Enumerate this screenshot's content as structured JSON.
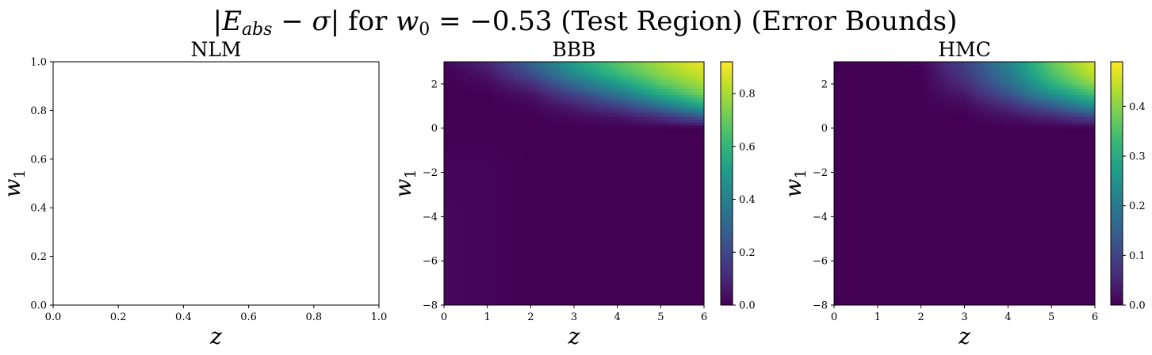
{
  "figure": {
    "suptitle_parts": [
      {
        "text": "|",
        "style": "normal"
      },
      {
        "text": "E",
        "style": "italic"
      },
      {
        "text": "abs",
        "style": "italic-sub"
      },
      {
        "text": " − ",
        "style": "normal"
      },
      {
        "text": "σ",
        "style": "italic"
      },
      {
        "text": "| for ",
        "style": "normal"
      },
      {
        "text": "w",
        "style": "italic"
      },
      {
        "text": "0",
        "style": "sub"
      },
      {
        "text": " = −0.53 (Test Region) (Error Bounds)",
        "style": "normal"
      }
    ]
  },
  "colormap": {
    "name": "viridis",
    "stops": [
      "#440154",
      "#482878",
      "#3e4989",
      "#31688e",
      "#26828e",
      "#1f9e89",
      "#35b779",
      "#6ece58",
      "#b5de2b",
      "#fde725"
    ]
  },
  "chart_data": [
    {
      "type": "heatmap",
      "title": "NLM",
      "xlabel": "z",
      "ylabel_main": "w",
      "ylabel_sub": "1",
      "xlim": [
        0,
        1
      ],
      "ylim": [
        0,
        1
      ],
      "xticks": [
        "0.0",
        "0.2",
        "0.4",
        "0.6",
        "0.8",
        "1.0"
      ],
      "yticks": [
        "0.0",
        "0.2",
        "0.4",
        "0.6",
        "0.8",
        "1.0"
      ],
      "empty": true,
      "colorbar": null
    },
    {
      "type": "heatmap",
      "title": "BBB",
      "xlabel": "z",
      "ylabel_main": "w",
      "ylabel_sub": "1",
      "xlim": [
        0,
        6
      ],
      "ylim": [
        -8,
        3
      ],
      "xticks": [
        "0",
        "1",
        "2",
        "3",
        "4",
        "5",
        "6"
      ],
      "yticks": [
        "−8",
        "−6",
        "−4",
        "−2",
        "0",
        "2"
      ],
      "empty": false,
      "x": [
        0,
        1,
        2,
        3,
        4,
        5,
        6
      ],
      "y": [
        -8,
        -6,
        -4,
        -2,
        0,
        0.5,
        1,
        1.5,
        2,
        2.5,
        3
      ],
      "z": [
        [
          0.02,
          0.01,
          0.0,
          0.0,
          0.0,
          0.0,
          0.0
        ],
        [
          0.02,
          0.01,
          0.0,
          0.0,
          0.0,
          0.0,
          0.0
        ],
        [
          0.02,
          0.01,
          0.0,
          0.0,
          0.0,
          0.0,
          0.0
        ],
        [
          0.01,
          0.01,
          0.0,
          0.0,
          0.0,
          0.0,
          0.0
        ],
        [
          0.0,
          0.0,
          0.0,
          0.0,
          0.0,
          0.0,
          0.0
        ],
        [
          0.0,
          0.0,
          0.0,
          0.02,
          0.05,
          0.12,
          0.25
        ],
        [
          0.0,
          0.0,
          0.01,
          0.08,
          0.18,
          0.34,
          0.55
        ],
        [
          0.0,
          0.0,
          0.04,
          0.18,
          0.34,
          0.55,
          0.72
        ],
        [
          0.0,
          0.02,
          0.12,
          0.32,
          0.5,
          0.68,
          0.8
        ],
        [
          0.0,
          0.05,
          0.22,
          0.45,
          0.62,
          0.76,
          0.86
        ],
        [
          0.02,
          0.1,
          0.3,
          0.52,
          0.68,
          0.8,
          0.9
        ]
      ],
      "colorbar": {
        "vmin": 0.0,
        "vmax": 0.92,
        "ticks": [
          0.0,
          0.2,
          0.4,
          0.6,
          0.8
        ],
        "tick_labels": [
          "0.0",
          "0.2",
          "0.4",
          "0.6",
          "0.8"
        ]
      }
    },
    {
      "type": "heatmap",
      "title": "HMC",
      "xlabel": "z",
      "ylabel_main": "w",
      "ylabel_sub": "1",
      "xlim": [
        0,
        6
      ],
      "ylim": [
        -8,
        3
      ],
      "xticks": [
        "0",
        "1",
        "2",
        "3",
        "4",
        "5",
        "6"
      ],
      "yticks": [
        "−8",
        "−6",
        "−4",
        "−2",
        "0",
        "2"
      ],
      "empty": false,
      "x": [
        0,
        1,
        2,
        3,
        4,
        5,
        6
      ],
      "y": [
        -8,
        -6,
        -4,
        -2,
        0,
        0.5,
        1,
        1.5,
        2,
        2.5,
        3
      ],
      "z": [
        [
          0.0,
          0.0,
          0.0,
          0.0,
          0.0,
          0.0,
          0.0
        ],
        [
          0.0,
          0.0,
          0.0,
          0.0,
          0.0,
          0.0,
          0.0
        ],
        [
          0.0,
          0.0,
          0.0,
          0.0,
          0.0,
          0.0,
          0.0
        ],
        [
          0.0,
          0.0,
          0.0,
          0.0,
          0.0,
          0.0,
          0.0
        ],
        [
          0.0,
          0.0,
          0.0,
          0.0,
          0.0,
          0.0,
          0.0
        ],
        [
          0.0,
          0.0,
          0.0,
          0.0,
          0.02,
          0.05,
          0.1
        ],
        [
          0.0,
          0.0,
          0.0,
          0.01,
          0.06,
          0.14,
          0.24
        ],
        [
          0.0,
          0.0,
          0.0,
          0.03,
          0.12,
          0.24,
          0.34
        ],
        [
          0.0,
          0.0,
          0.0,
          0.06,
          0.17,
          0.31,
          0.41
        ],
        [
          0.0,
          0.0,
          0.0,
          0.08,
          0.2,
          0.35,
          0.45
        ],
        [
          0.0,
          0.0,
          0.01,
          0.1,
          0.22,
          0.37,
          0.47
        ]
      ],
      "colorbar": {
        "vmin": 0.0,
        "vmax": 0.49,
        "ticks": [
          0.0,
          0.1,
          0.2,
          0.3,
          0.4
        ],
        "tick_labels": [
          "0.0",
          "0.1",
          "0.2",
          "0.3",
          "0.4"
        ]
      }
    }
  ]
}
